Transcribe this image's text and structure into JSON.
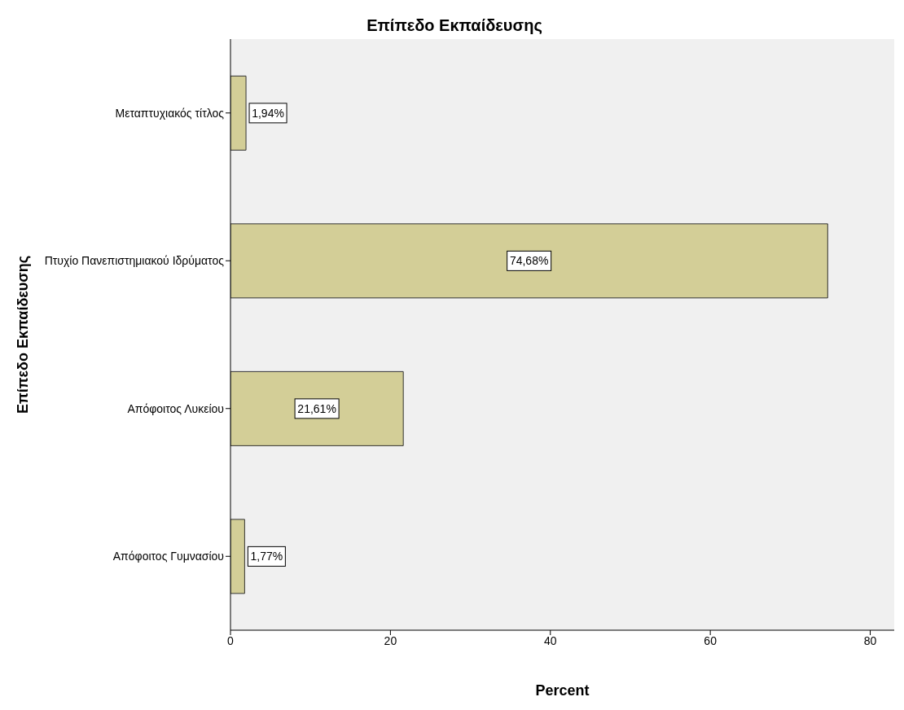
{
  "chart_data": {
    "type": "bar",
    "orientation": "horizontal",
    "title": "Επίπεδο Εκπαίδευσης",
    "xlabel": "Percent",
    "ylabel": "Επίπεδο Εκπαίδευσης",
    "categories": [
      "Μεταπτυχιακός τίτλος",
      "Πτυχίο Πανεπιστημιακού Ιδρύματος",
      "Απόφοιτος Λυκείου",
      "Απόφοιτος Γυμνασίου"
    ],
    "values": [
      1.94,
      74.68,
      21.61,
      1.77
    ],
    "value_labels": [
      "1,94%",
      "74,68%",
      "21,61%",
      "1,77%"
    ],
    "color": "#d3ce97",
    "xlim": [
      0,
      83
    ],
    "xticks": [
      0,
      20,
      40,
      60,
      80
    ],
    "grid": false,
    "legend": false
  }
}
